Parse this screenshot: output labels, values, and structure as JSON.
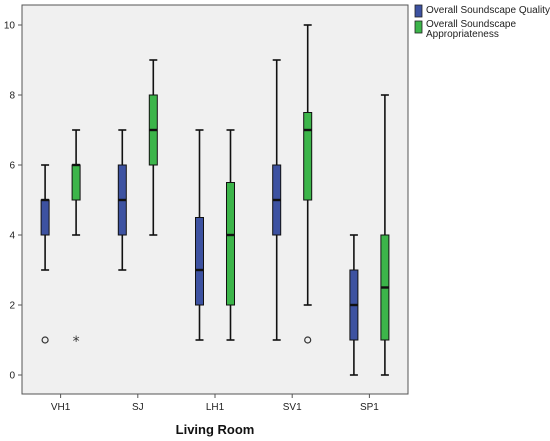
{
  "chart_data": {
    "type": "boxplot",
    "xlabel": "Living Room",
    "ylabel": "",
    "ylim": [
      0,
      10
    ],
    "yticks": [
      0,
      2,
      4,
      6,
      8,
      10
    ],
    "grid": false,
    "legend_position": "top-right",
    "categories": [
      "VH1",
      "SJ",
      "LH1",
      "SV1",
      "SP1"
    ],
    "series": [
      {
        "name": "Overall Soundscape Quality",
        "color": "#3d52a1",
        "boxes": [
          {
            "min": 3,
            "q1": 4,
            "median": 5,
            "q3": 5,
            "max": 6,
            "outliers": [
              {
                "value": 1,
                "marker": "circle"
              }
            ]
          },
          {
            "min": 3,
            "q1": 4,
            "median": 5,
            "q3": 6,
            "max": 7,
            "outliers": []
          },
          {
            "min": 1,
            "q1": 2,
            "median": 3,
            "q3": 4.5,
            "max": 7,
            "outliers": []
          },
          {
            "min": 1,
            "q1": 4,
            "median": 5,
            "q3": 6,
            "max": 9,
            "outliers": []
          },
          {
            "min": 0,
            "q1": 1,
            "median": 2,
            "q3": 3,
            "max": 4,
            "outliers": []
          }
        ]
      },
      {
        "name": "Overall Soundscape Appropriateness",
        "color": "#3cb54a",
        "boxes": [
          {
            "min": 4,
            "q1": 5,
            "median": 6,
            "q3": 6,
            "max": 7,
            "outliers": [
              {
                "value": 1,
                "marker": "star"
              }
            ]
          },
          {
            "min": 4,
            "q1": 6,
            "median": 7,
            "q3": 8,
            "max": 9,
            "outliers": []
          },
          {
            "min": 1,
            "q1": 2,
            "median": 4,
            "q3": 5.5,
            "max": 7,
            "outliers": []
          },
          {
            "min": 2,
            "q1": 5,
            "median": 7,
            "q3": 7.5,
            "max": 10,
            "outliers": [
              {
                "value": 1,
                "marker": "circle"
              }
            ]
          },
          {
            "min": 0,
            "q1": 1,
            "median": 2.5,
            "q3": 4,
            "max": 8,
            "outliers": []
          }
        ]
      }
    ]
  }
}
